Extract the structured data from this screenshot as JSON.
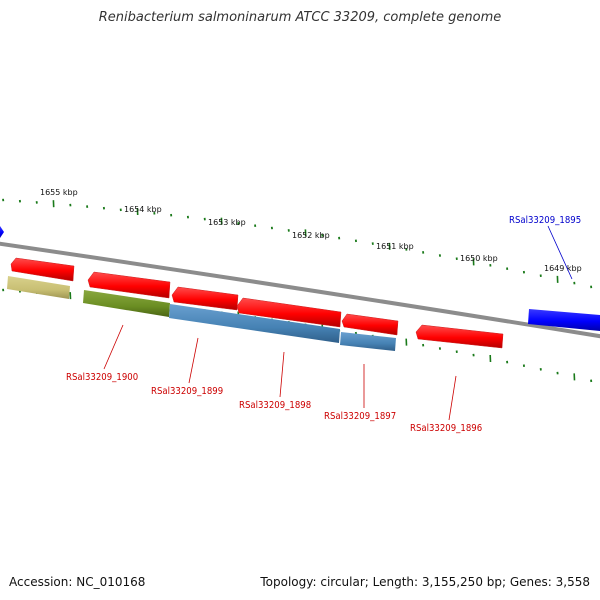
{
  "title": "Renibacterium salmoninarum ATCC 33209, complete genome",
  "footer": {
    "accession": "Accession: NC_010168",
    "stats": "Topology: circular; Length: 3,155,250 bp; Genes: 3,558"
  },
  "colors": {
    "backbone": "#8c8c8c",
    "tick": "#1a7a1a",
    "forward_gene": "#ff0000",
    "reverse_gene": "#0000ff",
    "label_red": "#cc0000",
    "label_blue": "#0000cc",
    "olive": "#6b8e23",
    "khaki": "#c8bf73",
    "steelblue": "#4682b4"
  },
  "scale_labels": [
    "1655 kbp",
    "1654 kbp",
    "1653 kbp",
    "1652 kbp",
    "1651 kbp",
    "1650 kbp",
    "1649 kbp"
  ],
  "genes": [
    {
      "id": "RSal33209_1900",
      "color": "red"
    },
    {
      "id": "RSal33209_1899",
      "color": "red"
    },
    {
      "id": "RSal33209_1898",
      "color": "red"
    },
    {
      "id": "RSal33209_1897",
      "color": "red"
    },
    {
      "id": "RSal33209_1896",
      "color": "red"
    },
    {
      "id": "RSal33209_1895",
      "color": "blue"
    }
  ]
}
